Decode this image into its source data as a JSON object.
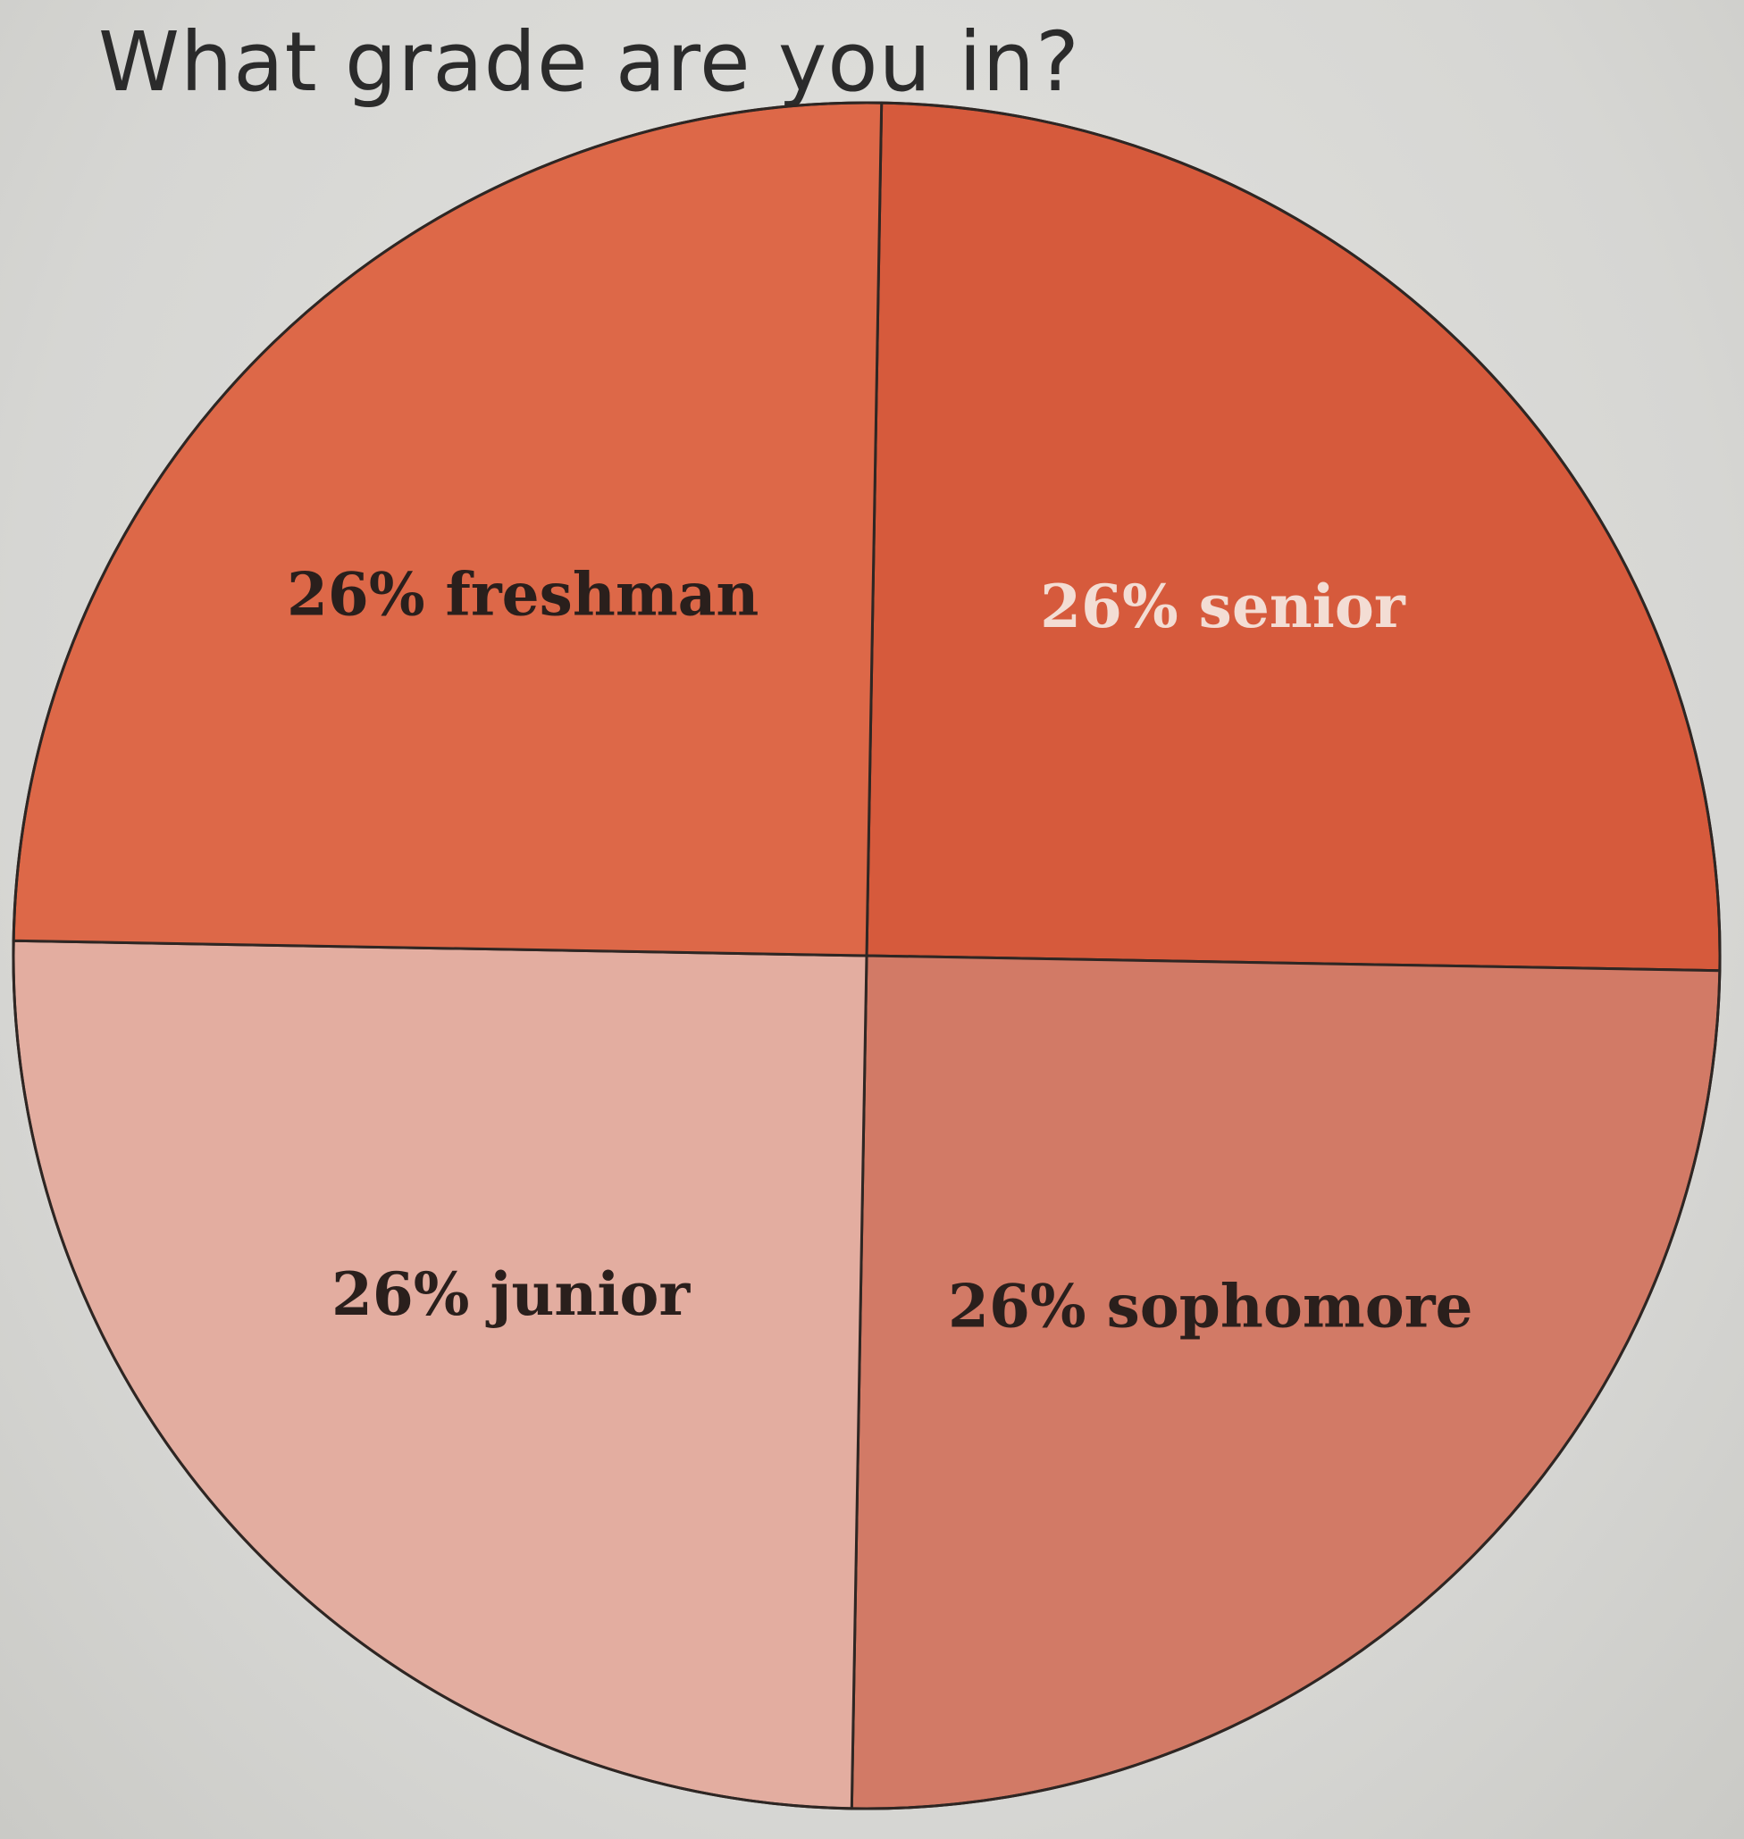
{
  "chart_data": {
    "type": "pie",
    "title": "What grade are you in?",
    "slices": [
      {
        "label": "26% senior",
        "value": 26,
        "category": "senior",
        "color": "#d65a3c",
        "label_color": "#f3ddd4"
      },
      {
        "label": "26% sophomore",
        "value": 26,
        "category": "sophomore",
        "color": "#d27a66",
        "label_color": "#2a1f1c"
      },
      {
        "label": "26% junior",
        "value": 26,
        "category": "junior",
        "color": "#e3ada0",
        "label_color": "#2a1f1c"
      },
      {
        "label": "26% freshman",
        "value": 26,
        "category": "freshman",
        "color": "#dd6848",
        "label_color": "#2a1f1c"
      }
    ],
    "outline_color": "#2e2623",
    "start": "top",
    "direction": "clockwise",
    "legend": "none"
  }
}
